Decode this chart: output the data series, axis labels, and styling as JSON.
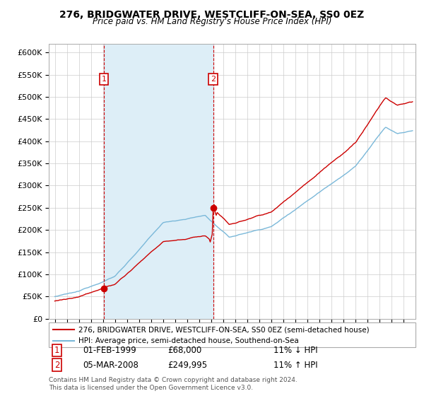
{
  "title": "276, BRIDGWATER DRIVE, WESTCLIFF-ON-SEA, SS0 0EZ",
  "subtitle": "Price paid vs. HM Land Registry's House Price Index (HPI)",
  "legend_line1": "276, BRIDGWATER DRIVE, WESTCLIFF-ON-SEA, SS0 0EZ (semi-detached house)",
  "legend_line2": "HPI: Average price, semi-detached house, Southend-on-Sea",
  "footer": "Contains HM Land Registry data © Crown copyright and database right 2024.\nThis data is licensed under the Open Government Licence v3.0.",
  "transaction1_label": "1",
  "transaction1_date": "01-FEB-1999",
  "transaction1_price": "£68,000",
  "transaction1_hpi": "11% ↓ HPI",
  "transaction1_year": 1999.08,
  "transaction1_value": 68000,
  "transaction2_label": "2",
  "transaction2_date": "05-MAR-2008",
  "transaction2_price": "£249,995",
  "transaction2_hpi": "11% ↑ HPI",
  "transaction2_year": 2008.17,
  "transaction2_value": 249995,
  "hpi_color": "#7ab8d9",
  "price_color": "#cc0000",
  "marker_color": "#cc0000",
  "vline_color": "#cc0000",
  "shade_color": "#ddeef7",
  "ylim_min": 0,
  "ylim_max": 620000,
  "yticks": [
    0,
    50000,
    100000,
    150000,
    200000,
    250000,
    300000,
    350000,
    400000,
    450000,
    500000,
    550000,
    600000
  ],
  "xlim_min": 1994.5,
  "xlim_max": 2025.0,
  "background_color": "#ffffff",
  "grid_color": "#cccccc"
}
